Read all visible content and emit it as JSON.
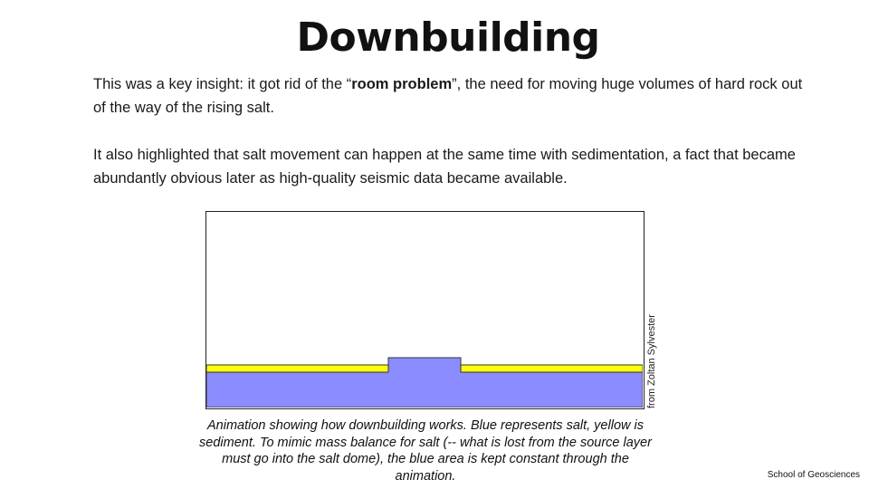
{
  "slide": {
    "title": "Downbuilding",
    "paragraph1": {
      "before": "This was a key insight: it got rid of the “",
      "bold": "room problem",
      "after": "”, the need for moving huge volumes of hard rock out of the way of the rising salt."
    },
    "paragraph2": "It also highlighted that salt movement can happen at the same time with sedimentation, a fact that became abundantly obvious later as high-quality seismic data became available.",
    "figure": {
      "credit": "from Zoltan Sylvester",
      "caption": "Animation showing how downbuilding works. Blue represents salt, yellow is sediment. To mimic mass balance for salt (-- what is lost from the source layer must go into the salt dome), the blue area is kept constant through the animation.",
      "colors": {
        "salt": "#8a8cff",
        "sediment": "#ffff00",
        "outline": "#333333"
      }
    },
    "footer": "School of Geosciences"
  }
}
